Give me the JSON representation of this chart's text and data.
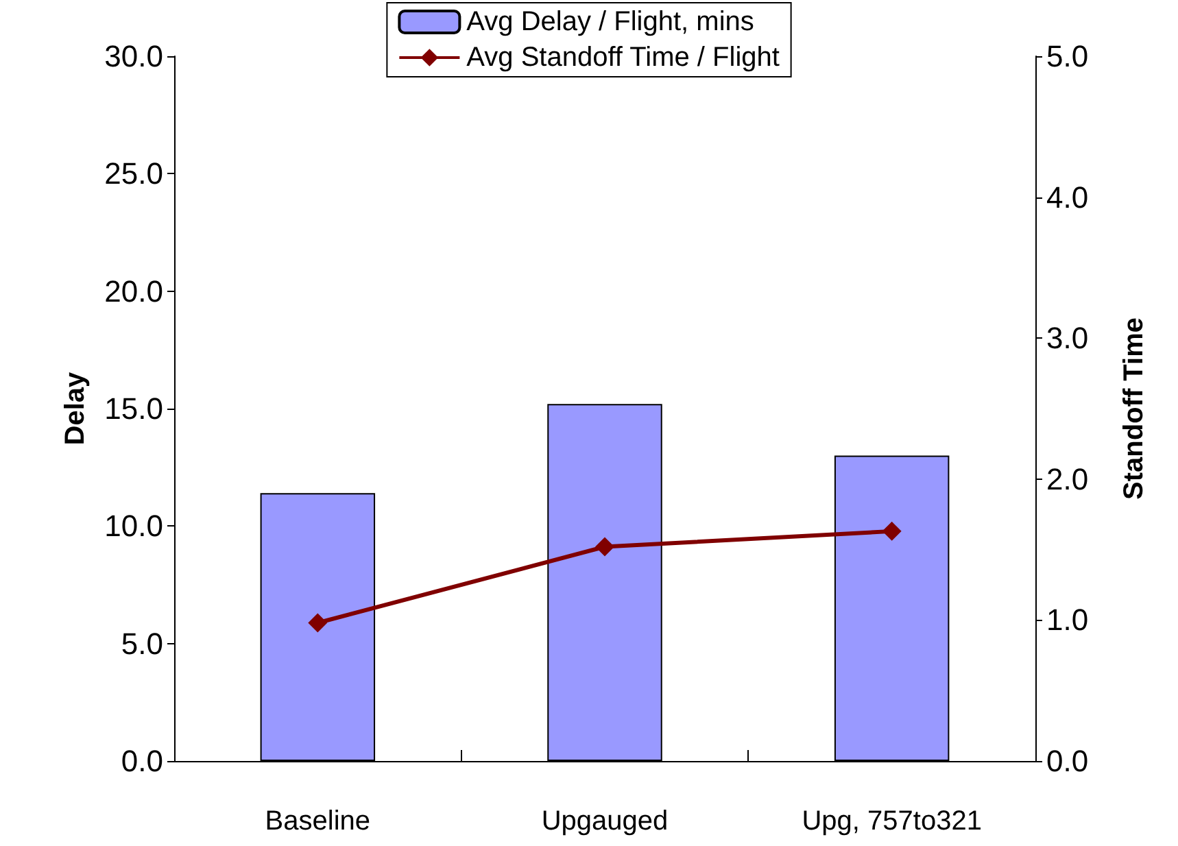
{
  "chart_data": {
    "type": "bar",
    "ylabel": "Delay",
    "y2label": "Standoff Time",
    "categories": [
      "Baseline",
      "Upgauged",
      "Upg, 757to321"
    ],
    "series": [
      {
        "name": "Avg Delay / Flight, mins",
        "color": "#9999ff",
        "values": [
          11.4,
          15.2,
          13.0
        ]
      },
      {
        "name": "Avg Standoff Time / Flight",
        "type": "line",
        "axis": "y2",
        "color": "#800000",
        "marker": "diamond",
        "values": [
          0.98,
          1.52,
          1.63
        ]
      }
    ],
    "ylim": [
      0,
      30
    ],
    "yticks": [
      {
        "value": 0,
        "label": "0.0"
      },
      {
        "value": 5,
        "label": "5.0"
      },
      {
        "value": 10,
        "label": "10.0"
      },
      {
        "value": 15,
        "label": "15.0"
      },
      {
        "value": 20,
        "label": "20.0"
      },
      {
        "value": 25,
        "label": "25.0"
      },
      {
        "value": 30,
        "label": "30.0"
      }
    ],
    "y2lim": [
      0,
      5
    ],
    "y2ticks": [
      {
        "value": 0,
        "label": "0.0"
      },
      {
        "value": 1,
        "label": "1.0"
      },
      {
        "value": 2,
        "label": "2.0"
      },
      {
        "value": 3,
        "label": "3.0"
      },
      {
        "value": 4,
        "label": "4.0"
      },
      {
        "value": 5,
        "label": "5.0"
      }
    ],
    "grid": false,
    "legend": "top"
  }
}
